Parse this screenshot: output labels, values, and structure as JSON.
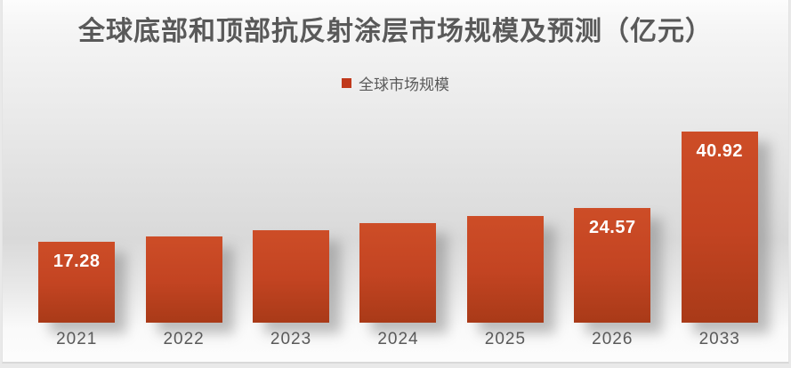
{
  "chart": {
    "title": "全球底部和顶部抗反射涂层市场规模及预测（亿元）",
    "legend": {
      "label": "全球市场规模",
      "swatch_color": "#C0391B"
    }
  },
  "chart_data": {
    "type": "bar",
    "title": "全球底部和顶部抗反射涂层市场规模及预测（亿元）",
    "series_name": "全球市场规模",
    "categories": [
      "2021",
      "2022",
      "2023",
      "2024",
      "2025",
      "2026",
      "2033"
    ],
    "values": [
      17.28,
      18.54,
      19.89,
      21.34,
      22.9,
      24.57,
      40.92
    ],
    "data_labels": [
      "17.28",
      "",
      "",
      "",
      "",
      "24.57",
      "40.92"
    ],
    "xlabel": "",
    "ylabel": "",
    "ylim": [
      0,
      43
    ],
    "grid": false,
    "legend_position": "top",
    "axis_visible": false,
    "colors": {
      "bar_top": "#CD4D27",
      "bar_bottom": "#A93A18",
      "value_label": "#FFFFFF",
      "axis_text": "#595959",
      "title_text": "#595959"
    }
  }
}
